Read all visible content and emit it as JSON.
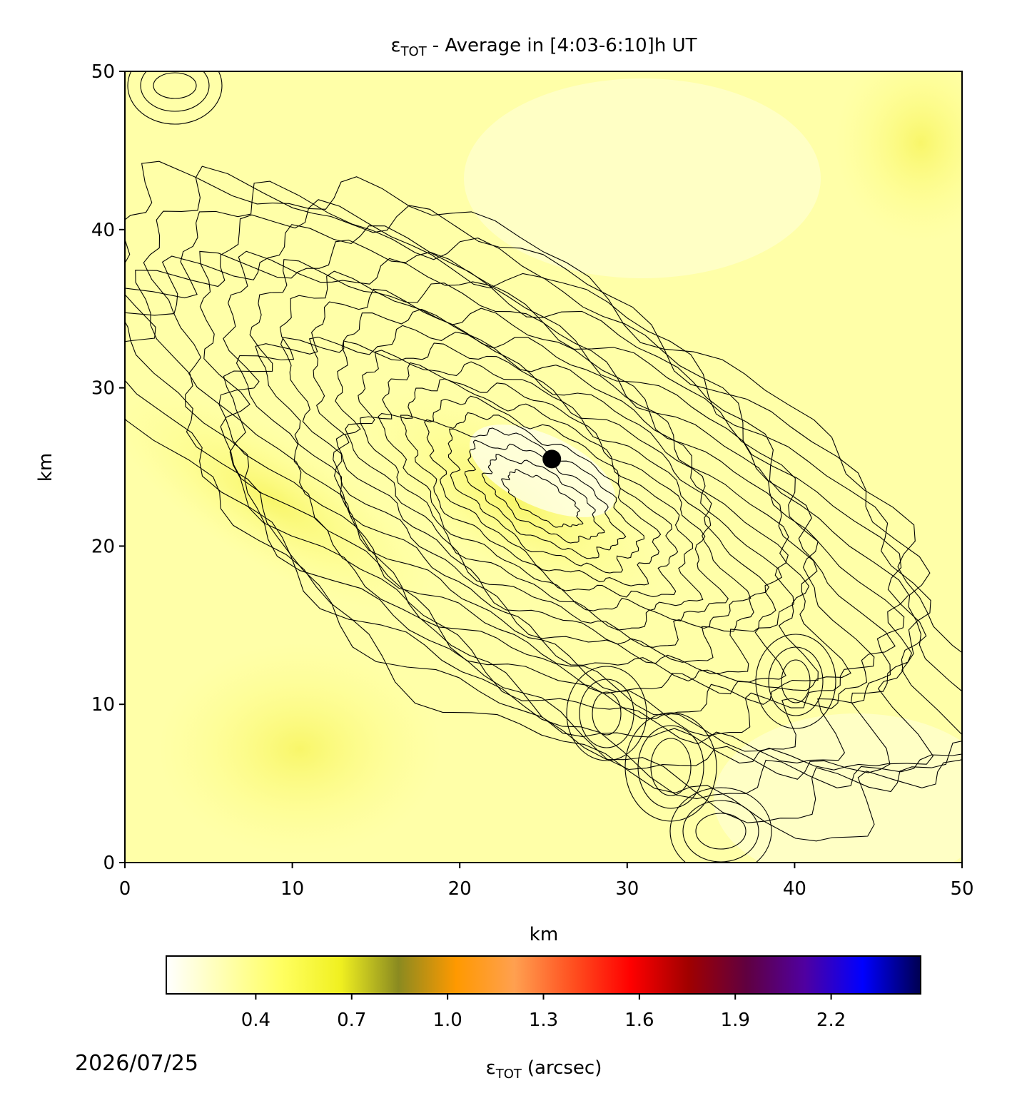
{
  "chart_data": {
    "type": "heatmap",
    "title_symbol": "ε",
    "title_subscript": "TOT",
    "title_text": "- Average in [4:03-6:10]h UT",
    "xlabel": "km",
    "ylabel": "km",
    "xlim": [
      0,
      50
    ],
    "ylim": [
      0,
      50
    ],
    "xticks": [
      0,
      10,
      20,
      30,
      40,
      50
    ],
    "yticks": [
      0,
      10,
      20,
      30,
      40,
      50
    ],
    "marker": {
      "x": 25.5,
      "y": 25.5,
      "color": "#000000"
    },
    "colorbar": {
      "label_symbol": "ε",
      "label_subscript": "TOT",
      "label_text": "(arcsec)",
      "lim": [
        0.12,
        2.48
      ],
      "ticks": [
        0.4,
        0.7,
        {
          "value": 1,
          "label": "1.0"
        },
        1.3,
        1.6,
        1.9,
        2.2
      ],
      "colors": [
        "#ffffff",
        "#ffffb0",
        "#ffff60",
        "#f0f020",
        "#8a8a20",
        "#ff9900",
        "#ffa050",
        "#ff5020",
        "#ff0000",
        "#a00000",
        "#600040",
        "#5000a0",
        "#0000ff",
        "#000050"
      ]
    },
    "date": "2026/07/25"
  }
}
